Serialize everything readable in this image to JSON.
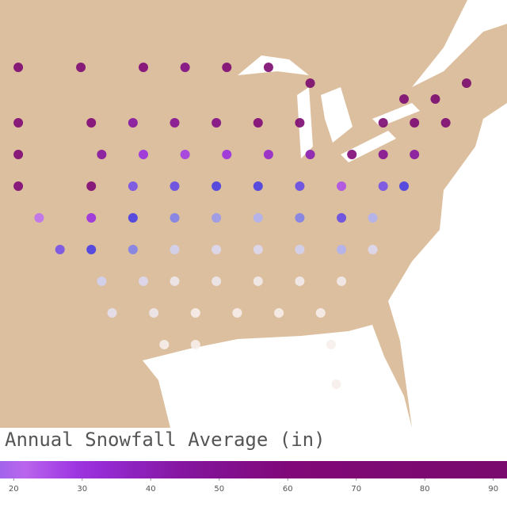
{
  "map": {
    "title": "Annual Snowfall Average (in)",
    "colorbar": {
      "range": [
        18,
        92
      ],
      "ticks": [
        20,
        30,
        40,
        50,
        60,
        70,
        80,
        90
      ]
    },
    "colorscale": [
      [
        0,
        "#f6eeea"
      ],
      [
        5,
        "#c9c9f2"
      ],
      [
        11,
        "#3838e0"
      ],
      [
        20,
        "#c070f0"
      ],
      [
        30,
        "#9a30e0"
      ],
      [
        45,
        "#84159e"
      ],
      [
        60,
        "#800878"
      ],
      [
        92,
        "#7a0a6e"
      ]
    ],
    "stations": {
      "lon": [
        -112,
        -106,
        -100,
        -96,
        -92,
        -88,
        -84,
        -75,
        -72,
        -69,
        -112,
        -105,
        -101,
        -97,
        -93,
        -89,
        -85,
        -77,
        -74,
        -71,
        -112,
        -104,
        -100,
        -96,
        -92,
        -88,
        -84,
        -80,
        -77,
        -74,
        -112,
        -105,
        -101,
        -97,
        -93,
        -89,
        -85,
        -81,
        -77,
        -75,
        -110,
        -105,
        -101,
        -97,
        -93,
        -89,
        -85,
        -81,
        -78,
        -108,
        -105,
        -101,
        -97,
        -93,
        -89,
        -85,
        -81,
        -78,
        -104,
        -100,
        -97,
        -93,
        -89,
        -85,
        -81,
        -103,
        -99,
        -95,
        -91,
        -87,
        -83,
        -98,
        -95,
        -82,
        -81.5
      ],
      "lat": [
        47,
        47,
        47,
        47,
        47,
        47,
        46,
        45,
        45,
        46,
        43.5,
        43.5,
        43.5,
        43.5,
        43.5,
        43.5,
        43.5,
        43.5,
        43.5,
        43.5,
        41.5,
        41.5,
        41.5,
        41.5,
        41.5,
        41.5,
        41.5,
        41.5,
        41.5,
        41.5,
        39.5,
        39.5,
        39.5,
        39.5,
        39.5,
        39.5,
        39.5,
        39.5,
        39.5,
        39.5,
        37.5,
        37.5,
        37.5,
        37.5,
        37.5,
        37.5,
        37.5,
        37.5,
        37.5,
        35.5,
        35.5,
        35.5,
        35.5,
        35.5,
        35.5,
        35.5,
        35.5,
        35.5,
        33.5,
        33.5,
        33.5,
        33.5,
        33.5,
        33.5,
        33.5,
        31.5,
        31.5,
        31.5,
        31.5,
        31.5,
        31.5,
        29.5,
        29.5,
        29.5,
        27
      ],
      "values": [
        80,
        75,
        60,
        55,
        70,
        85,
        90,
        85,
        88,
        90,
        65,
        60,
        45,
        50,
        55,
        60,
        80,
        85,
        80,
        75,
        70,
        45,
        30,
        28,
        30,
        35,
        40,
        70,
        50,
        45,
        60,
        70,
        15,
        14,
        12,
        12,
        14,
        25,
        15,
        12,
        20,
        30,
        12,
        8,
        7,
        6,
        8,
        14,
        6,
        15,
        12,
        8,
        4,
        3,
        3,
        4,
        6,
        3,
        4,
        3,
        1,
        1,
        0.5,
        0.5,
        0.5,
        2,
        1,
        0,
        0,
        0,
        0,
        0,
        0,
        0,
        0
      ]
    }
  }
}
